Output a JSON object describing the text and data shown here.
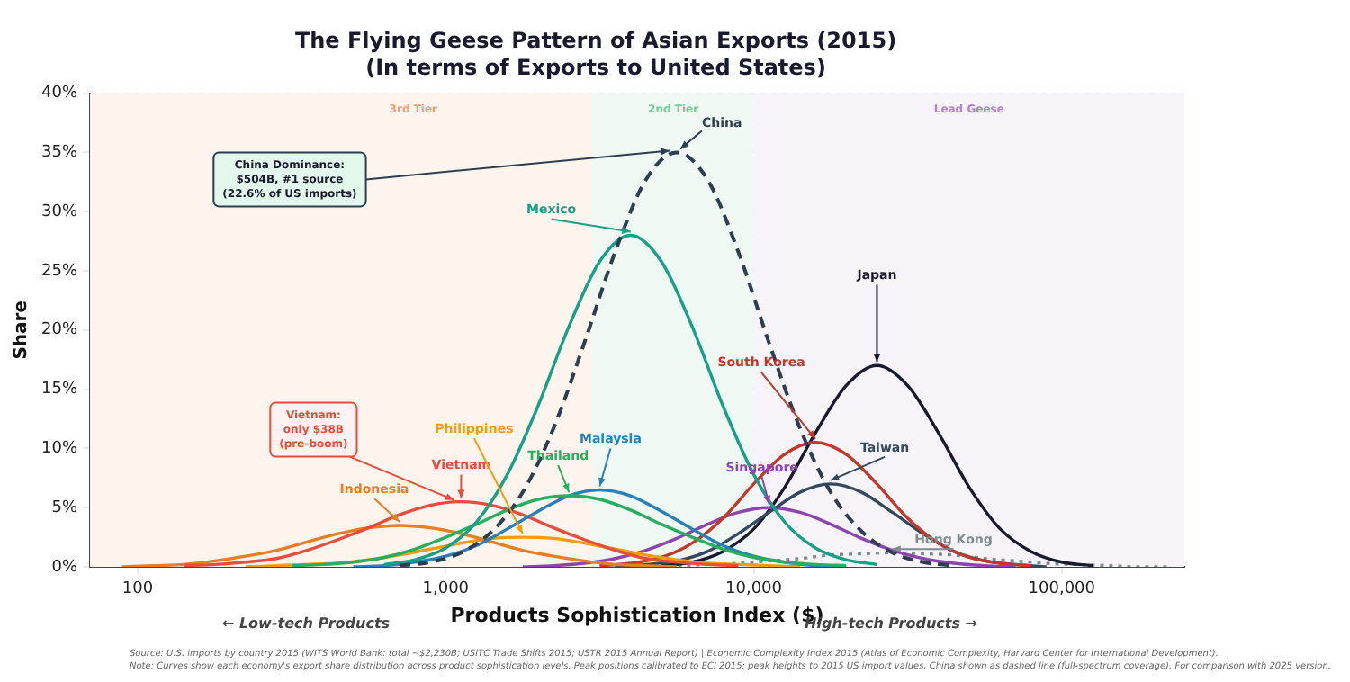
{
  "chart_data": {
    "type": "line",
    "title": "The Flying Geese Pattern of Asian Exports (2015)",
    "subtitle": "(In terms of Exports to United States)",
    "xlabel": "Products Sophistication Index ($)",
    "ylabel": "Share",
    "log": "x",
    "grid": true,
    "legend": false,
    "marker": "none",
    "xlim": [
      70,
      250000
    ],
    "xticks": [
      {
        "value": 100,
        "label": "100"
      },
      {
        "value": 1000,
        "label": "1,000"
      },
      {
        "value": 10000,
        "label": "10,000"
      },
      {
        "value": 100000,
        "label": "100,000"
      }
    ],
    "ylim": [
      0,
      40
    ],
    "yticks": [
      {
        "value": 0,
        "label": "0%"
      },
      {
        "value": 5,
        "label": "5%"
      },
      {
        "value": 10,
        "label": "10%"
      },
      {
        "value": 15,
        "label": "15%"
      },
      {
        "value": 20,
        "label": "20%"
      },
      {
        "value": 25,
        "label": "25%"
      },
      {
        "value": 30,
        "label": "30%"
      },
      {
        "value": 35,
        "label": "35%"
      },
      {
        "value": 40,
        "label": "40%"
      }
    ],
    "bands": [
      {
        "axis": "x",
        "from": 70,
        "to": 3000,
        "label": "3rd Tier",
        "color": "#fdf4ee"
      },
      {
        "axis": "x",
        "from": 3000,
        "to": 10000,
        "label": "2nd Tier",
        "color": "#eff8f2"
      },
      {
        "axis": "x",
        "from": 10000,
        "to": 250000,
        "label": "Lead Geese",
        "color": "#f6f3f9"
      }
    ],
    "series": [
      {
        "name": "China",
        "color": "#2c3e50",
        "line_style": "dashed",
        "x": [
          708,
          891,
          1122,
          1413,
          1778,
          2239,
          2818,
          3548,
          4467,
          5623,
          7079,
          8913,
          11220,
          14130,
          17780,
          22390,
          28180,
          35480,
          44670
        ],
        "values": [
          0.1,
          0.4,
          1.2,
          3.0,
          6.3,
          11.7,
          18.9,
          26.6,
          32.7,
          35,
          32.7,
          26.6,
          18.9,
          11.7,
          6.3,
          3.0,
          1.2,
          0.4,
          0.1
        ]
      },
      {
        "name": "Mexico",
        "color": "#16a085",
        "x": [
          631,
          794,
          1000,
          1259,
          1585,
          1995,
          2512,
          3162,
          3981,
          5012,
          6310,
          7943,
          10000,
          12590,
          15850,
          19950,
          25120
        ],
        "values": [
          0.2,
          0.6,
          1.6,
          3.8,
          7.8,
          13.6,
          20.3,
          25.8,
          28,
          25.8,
          20.3,
          13.6,
          7.8,
          3.8,
          1.6,
          0.6,
          0.2
        ]
      },
      {
        "name": "Thailand",
        "color": "#27ae60",
        "x": [
          316,
          398,
          501,
          631,
          794,
          1000,
          1259,
          1585,
          1995,
          2512,
          3162,
          3981,
          5012,
          6310,
          7943,
          10000,
          12590,
          15850,
          19950
        ],
        "values": [
          0.1,
          0.2,
          0.4,
          0.8,
          1.5,
          2.5,
          3.6,
          4.8,
          5.7,
          6.0,
          5.7,
          4.8,
          3.6,
          2.5,
          1.5,
          0.8,
          0.4,
          0.2,
          0.1
        ]
      },
      {
        "name": "Malaysia",
        "color": "#2980b9",
        "x": [
          501,
          631,
          794,
          1000,
          1259,
          1585,
          1995,
          2512,
          3162,
          3981,
          5012,
          6310,
          7943,
          10000,
          12590,
          15850,
          19950
        ],
        "values": [
          0.0,
          0.1,
          0.4,
          0.9,
          1.8,
          3.2,
          4.7,
          6.0,
          6.5,
          6.0,
          4.7,
          3.2,
          1.8,
          0.9,
          0.4,
          0.1,
          0.0
        ]
      },
      {
        "name": "Vietnam",
        "color": "#e74c3c",
        "x": [
          141,
          178,
          224,
          282,
          355,
          447,
          562,
          708,
          891,
          1122,
          1413,
          1778,
          2239,
          2818,
          3548,
          4467,
          5623,
          7079,
          8913
        ],
        "values": [
          0.1,
          0.2,
          0.4,
          0.7,
          1.4,
          2.3,
          3.3,
          4.4,
          5.2,
          5.5,
          5.2,
          4.4,
          3.3,
          2.3,
          1.4,
          0.7,
          0.4,
          0.2,
          0.1
        ]
      },
      {
        "name": "Indonesia",
        "color": "#e67e22",
        "x": [
          89,
          112,
          141,
          178,
          224,
          282,
          355,
          447,
          562,
          708,
          891,
          1122,
          1413,
          1778,
          2239,
          2818,
          3548,
          4467,
          5623
        ],
        "values": [
          0.0,
          0.1,
          0.2,
          0.5,
          0.9,
          1.4,
          2.1,
          2.8,
          3.3,
          3.5,
          3.3,
          2.8,
          2.1,
          1.4,
          0.9,
          0.5,
          0.2,
          0.1,
          0.0
        ]
      },
      {
        "name": "Philippines",
        "color": "#f39c12",
        "x": [
          224,
          282,
          355,
          447,
          562,
          708,
          891,
          1122,
          1413,
          1778,
          2239,
          2818,
          3548,
          4467,
          5623,
          7079,
          8913,
          11220,
          14130
        ],
        "values": [
          0.0,
          0.1,
          0.2,
          0.3,
          0.6,
          1.0,
          1.5,
          2.0,
          2.4,
          2.5,
          2.4,
          2.0,
          1.5,
          1.0,
          0.6,
          0.3,
          0.2,
          0.1,
          0.0
        ]
      },
      {
        "name": "South Korea",
        "color": "#c0392b",
        "x": [
          3162,
          3981,
          5012,
          6310,
          7943,
          10000,
          12590,
          15850,
          19950,
          25120,
          31620,
          39810,
          50120,
          63100,
          79430
        ],
        "values": [
          0.1,
          0.3,
          0.8,
          2.0,
          4.1,
          7.0,
          9.5,
          10.5,
          9.5,
          7.0,
          4.1,
          2.0,
          0.8,
          0.3,
          0.1
        ]
      },
      {
        "name": "Taiwan",
        "color": "#34495e",
        "x": [
          3548,
          4467,
          5623,
          7079,
          8913,
          11220,
          14130,
          17780,
          22390,
          28180,
          35480,
          44670,
          56230,
          70790,
          89130
        ],
        "values": [
          0.0,
          0.2,
          0.5,
          1.3,
          2.8,
          4.6,
          6.3,
          7.0,
          6.3,
          4.6,
          2.8,
          1.3,
          0.5,
          0.2,
          0.0
        ]
      },
      {
        "name": "Singapore",
        "color": "#8e44ad",
        "x": [
          1778,
          2239,
          2818,
          3548,
          4467,
          5623,
          7079,
          8913,
          11220,
          14130,
          17780,
          22390,
          28180,
          35480,
          44670,
          56230,
          70790
        ],
        "values": [
          0.0,
          0.1,
          0.3,
          0.7,
          1.4,
          2.4,
          3.6,
          4.6,
          5.0,
          4.6,
          3.6,
          2.4,
          1.4,
          0.7,
          0.3,
          0.1,
          0.0
        ]
      },
      {
        "name": "Japan",
        "color": "#1a1a2e",
        "x": [
          5012,
          6310,
          7943,
          10000,
          12590,
          15850,
          19950,
          25120,
          31620,
          39810,
          50120,
          63100,
          79430,
          100000,
          125900
        ],
        "values": [
          0.1,
          0.4,
          1.3,
          3.2,
          6.7,
          11.3,
          15.3,
          17.0,
          15.3,
          11.3,
          6.7,
          3.2,
          1.3,
          0.4,
          0.1
        ]
      },
      {
        "name": "Hong Kong",
        "color": "#7f8c8d",
        "line_style": "dotted",
        "x": [
          3548,
          4467,
          5623,
          7079,
          8913,
          11220,
          14130,
          17780,
          22390,
          28180,
          35480,
          44670,
          56230,
          70790,
          89130,
          112200,
          141300,
          177800,
          223900
        ],
        "values": [
          0.0,
          0.0,
          0.1,
          0.2,
          0.3,
          0.5,
          0.7,
          1.0,
          1.1,
          1.2,
          1.1,
          1.0,
          0.7,
          0.5,
          0.3,
          0.2,
          0.1,
          0.0,
          0.0
        ]
      }
    ],
    "annotations": [
      {
        "text": "China Dominance:\n$504B, #1 source\n(22.6% of US imports)",
        "x": 5623,
        "y": 35
      },
      {
        "text": "Vietnam:\nonly $38B\n(pre-boom)",
        "x": 1122,
        "y": 5.5
      },
      "← Low-tech Products",
      "High-tech Products →",
      "Source: U.S. imports by country 2015 (WITS World Bank: total ~$2,230B; USITC Trade Shifts 2015; USTR 2015 Annual Report) | Economic Complexity Index 2015 (Atlas of Economic Complexity, Harvard Center for International Development).",
      "Note: Curves show each economy's export share distribution across product sophistication levels. Peak positions calibrated to ECI 2015; peak heights to 2015 US import values. China shown as dashed line (full-spectrum coverage). For comparison with 2025 version."
    ]
  }
}
